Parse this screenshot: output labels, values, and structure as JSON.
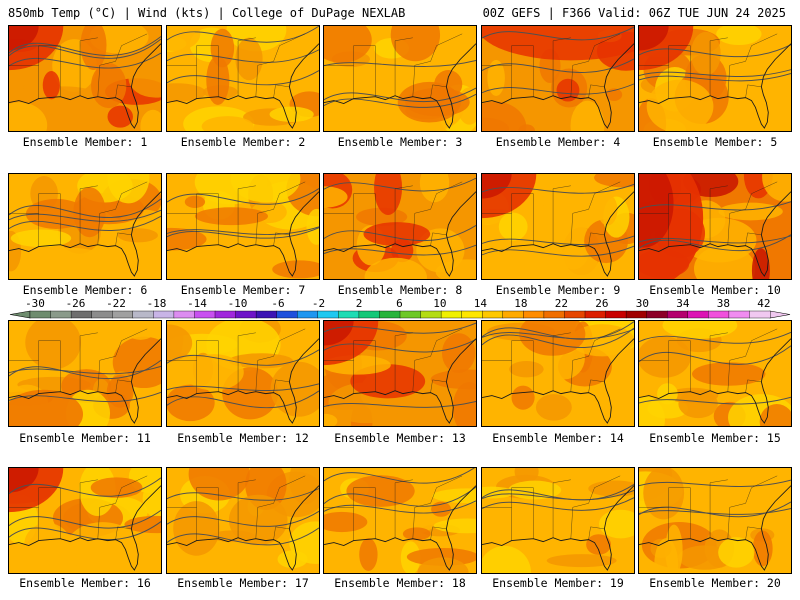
{
  "header": {
    "left": "850mb Temp (°C) | Wind (kts) | College of DuPage NEXLAB",
    "right": "00Z GEFS | F366 Valid: 06Z TUE JUN 24 2025"
  },
  "members": [
    {
      "label": "Ensemble Member: 1",
      "tone": "hot",
      "warm_corner": "top-left"
    },
    {
      "label": "Ensemble Member: 2",
      "tone": "mild",
      "warm_corner": "none"
    },
    {
      "label": "Ensemble Member: 3",
      "tone": "mild",
      "warm_corner": "none"
    },
    {
      "label": "Ensemble Member: 4",
      "tone": "hot",
      "warm_corner": "top"
    },
    {
      "label": "Ensemble Member: 5",
      "tone": "mild",
      "warm_corner": "top-left"
    },
    {
      "label": "Ensemble Member: 6",
      "tone": "mild",
      "warm_corner": "none"
    },
    {
      "label": "Ensemble Member: 7",
      "tone": "mild",
      "warm_corner": "none"
    },
    {
      "label": "Ensemble Member: 8",
      "tone": "hot",
      "warm_corner": "none"
    },
    {
      "label": "Ensemble Member: 9",
      "tone": "mild",
      "warm_corner": "top-left"
    },
    {
      "label": "Ensemble Member: 10",
      "tone": "veryhot",
      "warm_corner": "left"
    },
    {
      "label": "Ensemble Member: 11",
      "tone": "mild",
      "warm_corner": "bottom-left"
    },
    {
      "label": "Ensemble Member: 12",
      "tone": "mild",
      "warm_corner": "none"
    },
    {
      "label": "Ensemble Member: 13",
      "tone": "hot",
      "warm_corner": "top-left"
    },
    {
      "label": "Ensemble Member: 14",
      "tone": "mild",
      "warm_corner": "none"
    },
    {
      "label": "Ensemble Member: 15",
      "tone": "mild",
      "warm_corner": "none"
    },
    {
      "label": "Ensemble Member: 16",
      "tone": "mild",
      "warm_corner": "top-left"
    },
    {
      "label": "Ensemble Member: 17",
      "tone": "mild",
      "warm_corner": "none"
    },
    {
      "label": "Ensemble Member: 18",
      "tone": "mild",
      "warm_corner": "none"
    },
    {
      "label": "Ensemble Member: 19",
      "tone": "mild",
      "warm_corner": "none"
    },
    {
      "label": "Ensemble Member: 20",
      "tone": "mild",
      "warm_corner": "none"
    }
  ],
  "colorbar": {
    "ticks": [
      "-30",
      "-26",
      "-22",
      "-18",
      "-14",
      "-10",
      "-6",
      "-2",
      "2",
      "6",
      "10",
      "14",
      "18",
      "22",
      "26",
      "30",
      "34",
      "38",
      "42"
    ],
    "colors": [
      "#6e8c6e",
      "#8a9a8a",
      "#6e6e6e",
      "#8c8c8c",
      "#a0a0a0",
      "#b8b8c8",
      "#c8b4e6",
      "#dc8cf0",
      "#c850f0",
      "#a028dc",
      "#6e14c8",
      "#3c14b4",
      "#1e50dc",
      "#1e96f0",
      "#1ec8f0",
      "#1edcb4",
      "#14c878",
      "#28b43c",
      "#6ec828",
      "#b4dc14",
      "#f0f000",
      "#ffe600",
      "#ffc800",
      "#ffaa00",
      "#ff8c00",
      "#f06e00",
      "#e64600",
      "#dc1e00",
      "#c80000",
      "#a00000",
      "#8c0028",
      "#b4006e",
      "#dc14b4",
      "#f050dc",
      "#f08cf0",
      "#f0c8f0"
    ]
  },
  "palette": {
    "yellow": "#ffd400",
    "gold": "#ffb400",
    "orange": "#f59600",
    "darkorange": "#f07800",
    "red": "#e63200",
    "darkred": "#c81400",
    "coast": "#1a1a1a",
    "contour": "#505050"
  }
}
